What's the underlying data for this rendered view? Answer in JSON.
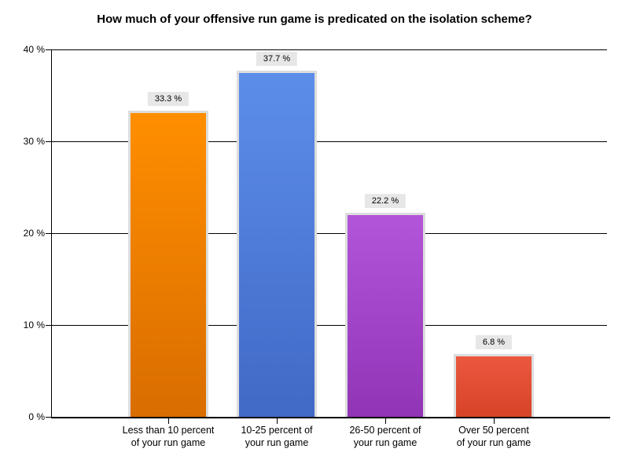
{
  "chart_data": {
    "type": "bar",
    "title": "How much of your offensive run game is predicated on the isolation scheme?",
    "categories": [
      [
        "Less than 10 percent",
        "of your run game"
      ],
      [
        "10-25 percent of",
        "your run game"
      ],
      [
        "26-50 percent of",
        "your run game"
      ],
      [
        "Over 50 percent",
        "of your run game"
      ]
    ],
    "values": [
      33.3,
      37.7,
      22.2,
      6.8
    ],
    "value_labels": [
      "33.3 %",
      "37.7 %",
      "22.2 %",
      "6.8 %"
    ],
    "xlabel": "",
    "ylabel": "",
    "ylim": [
      0,
      40
    ],
    "yticks": [
      0,
      10,
      20,
      30,
      40
    ],
    "ytick_labels": [
      "0 %",
      "10 %",
      "20 %",
      "30 %",
      "40 %"
    ],
    "grid": true,
    "legend": "none",
    "colors": {
      "bars": [
        {
          "top": "#FF8E00",
          "bottom": "#D96D00"
        },
        {
          "top": "#5C8EE9",
          "bottom": "#4169C6"
        },
        {
          "top": "#B355D9",
          "bottom": "#9134B6"
        },
        {
          "top": "#EB5840",
          "bottom": "#D64327"
        }
      ],
      "bar_border": "#DDDDDD",
      "value_label_bg": "#E7E7E7",
      "axis": "#000000",
      "text": "#000000",
      "background": "#FFFFFF"
    }
  }
}
